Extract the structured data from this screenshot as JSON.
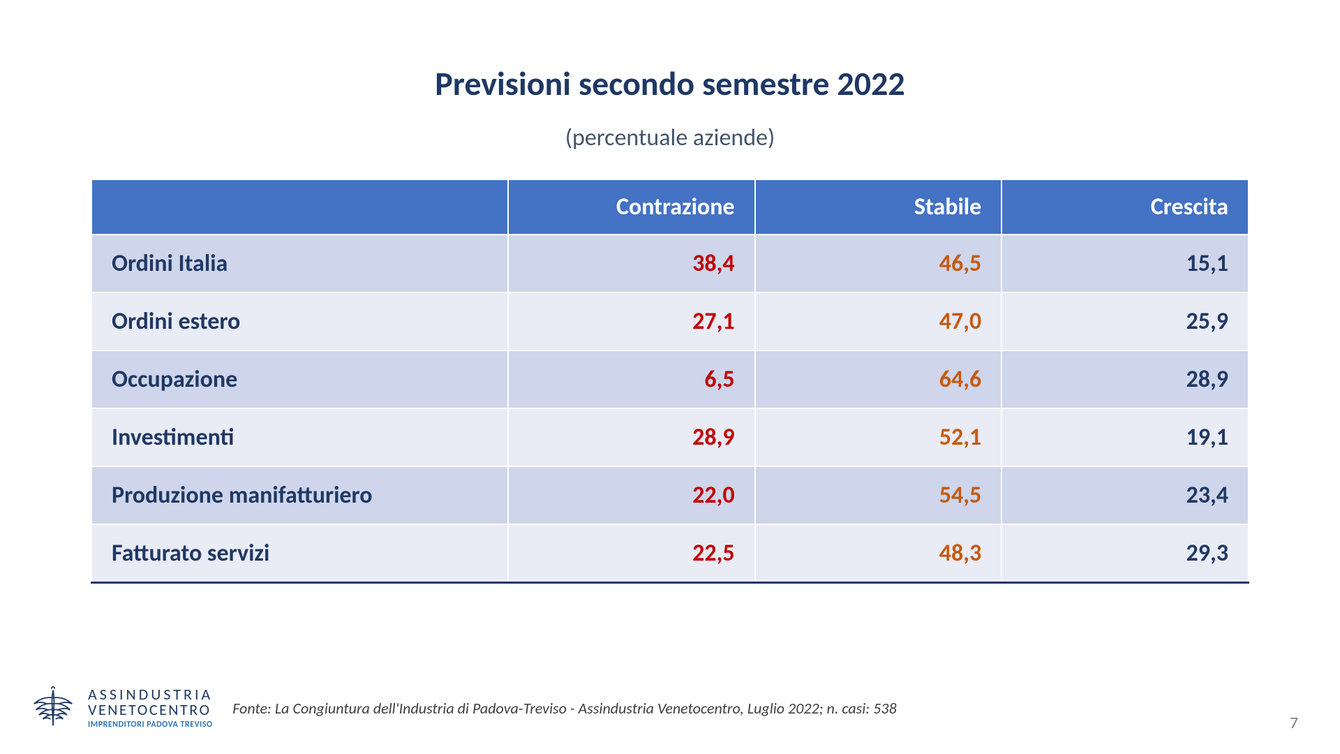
{
  "title": "Previsioni secondo semestre 2022",
  "subtitle": "(percentuale aziende)",
  "columns": {
    "contrazione": "Contrazione",
    "stabile": "Stabile",
    "crescita": "Crescita"
  },
  "rows": [
    {
      "label": "Ordini Italia",
      "contrazione": "38,4",
      "stabile": "46,5",
      "crescita": "15,1"
    },
    {
      "label": "Ordini estero",
      "contrazione": "27,1",
      "stabile": "47,0",
      "crescita": "25,9"
    },
    {
      "label": "Occupazione",
      "contrazione": "6,5",
      "stabile": "64,6",
      "crescita": "28,9"
    },
    {
      "label": "Investimenti",
      "contrazione": "28,9",
      "stabile": "52,1",
      "crescita": "19,1"
    },
    {
      "label": "Produzione manifatturiero",
      "contrazione": "22,0",
      "stabile": "54,5",
      "crescita": "23,4"
    },
    {
      "label": "Fatturato servizi",
      "contrazione": "22,5",
      "stabile": "48,3",
      "crescita": "29,3"
    }
  ],
  "styling": {
    "header_bg": "#4472c4",
    "header_text": "#ffffff",
    "row_odd_bg": "#cfd5ea",
    "row_even_bg": "#e9ebf5",
    "label_color": "#1f3864",
    "contrazione_color": "#c00000",
    "stabile_color": "#c55a11",
    "crescita_color": "#1f3864",
    "title_color": "#1f3864",
    "subtitle_color": "#44546a",
    "title_fontsize": 48,
    "subtitle_fontsize": 34,
    "cell_fontsize": 34,
    "font_weight": 700,
    "table_bottom_border": "#1f3864",
    "background_color": "#ffffff"
  },
  "logo": {
    "line1": "ASSINDUSTRIA",
    "line2": "VENETOCENTRO",
    "line3": "IMPRENDITORI PADOVA TREVISO",
    "icon_color": "#1f3864"
  },
  "source": "Fonte: La Congiuntura dell'Industria di Padova-Treviso - Assindustria Venetocentro, Luglio 2022; n. casi: 538",
  "page_number": "7"
}
